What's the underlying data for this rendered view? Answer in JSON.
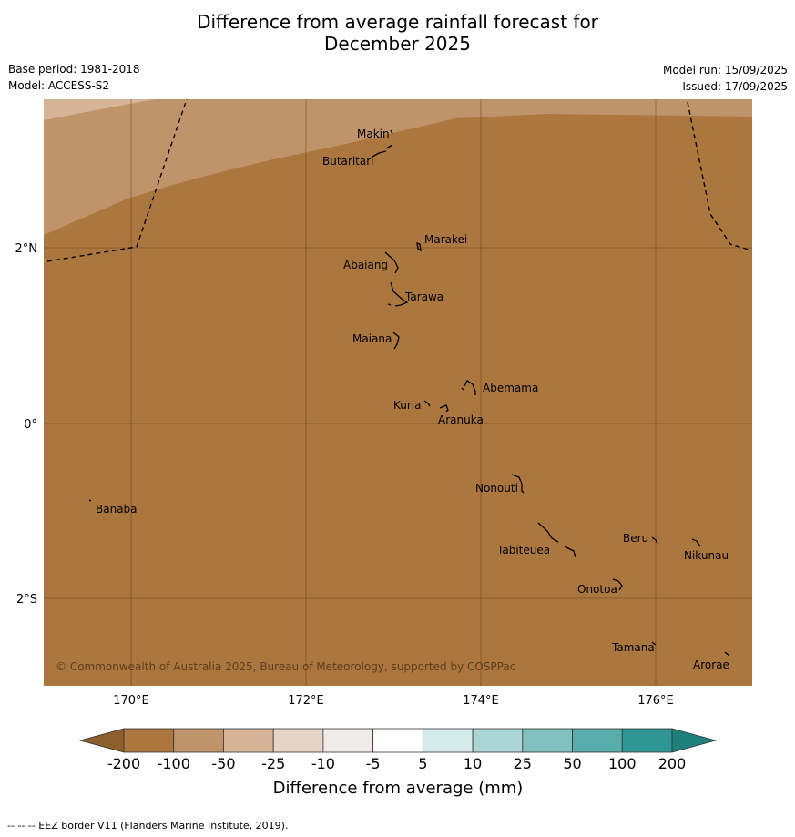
{
  "title": {
    "line1": "Difference from average rainfall forecast for",
    "line2": "December 2025"
  },
  "meta": {
    "base_period": "Base period: 1981-2018",
    "model": "Model: ACCESS-S2",
    "model_run": "Model run: 15/09/2025",
    "issued": "Issued: 17/09/2025"
  },
  "map": {
    "lon_ticks": [
      "170°E",
      "172°E",
      "174°E",
      "176°E"
    ],
    "lat_ticks": [
      "2°N",
      "0°",
      "2°S"
    ],
    "copyright": "© Commonwealth of Australia 2025, Bureau of Meteorology, supported by COSPPac",
    "islands": [
      "Makin",
      "Butaritari",
      "Marakei",
      "Abaiang",
      "Tarawa",
      "Maiana",
      "Abemama",
      "Kuria",
      "Aranuka",
      "Banaba",
      "Nonouti",
      "Beru",
      "Nikunau",
      "Tabiteuea",
      "Onotoa",
      "Tamana",
      "Arorae"
    ],
    "colors": {
      "dry_strong": "#ab773f",
      "dry_medium": "#c0946a",
      "dry_light": "#d5b497",
      "gridline": "#6a4420"
    }
  },
  "colorbar": {
    "labels": [
      "-200",
      "-100",
      "-50",
      "-25",
      "-10",
      "-5",
      "5",
      "10",
      "25",
      "50",
      "100",
      "200"
    ],
    "colors": [
      "#ab773f",
      "#c0946a",
      "#d5b497",
      "#e6d5c6",
      "#efebe8",
      "#ffffff",
      "#d5ebea",
      "#acd6d5",
      "#82c1bf",
      "#58acaa",
      "#2e9795"
    ],
    "under_color": "#8d5f2c",
    "over_color": "#1e7f7d",
    "label": "Difference from average (mm)"
  },
  "footnote": "--  --  -- EEZ border V11 (Flanders Marine Institute, 2019)."
}
